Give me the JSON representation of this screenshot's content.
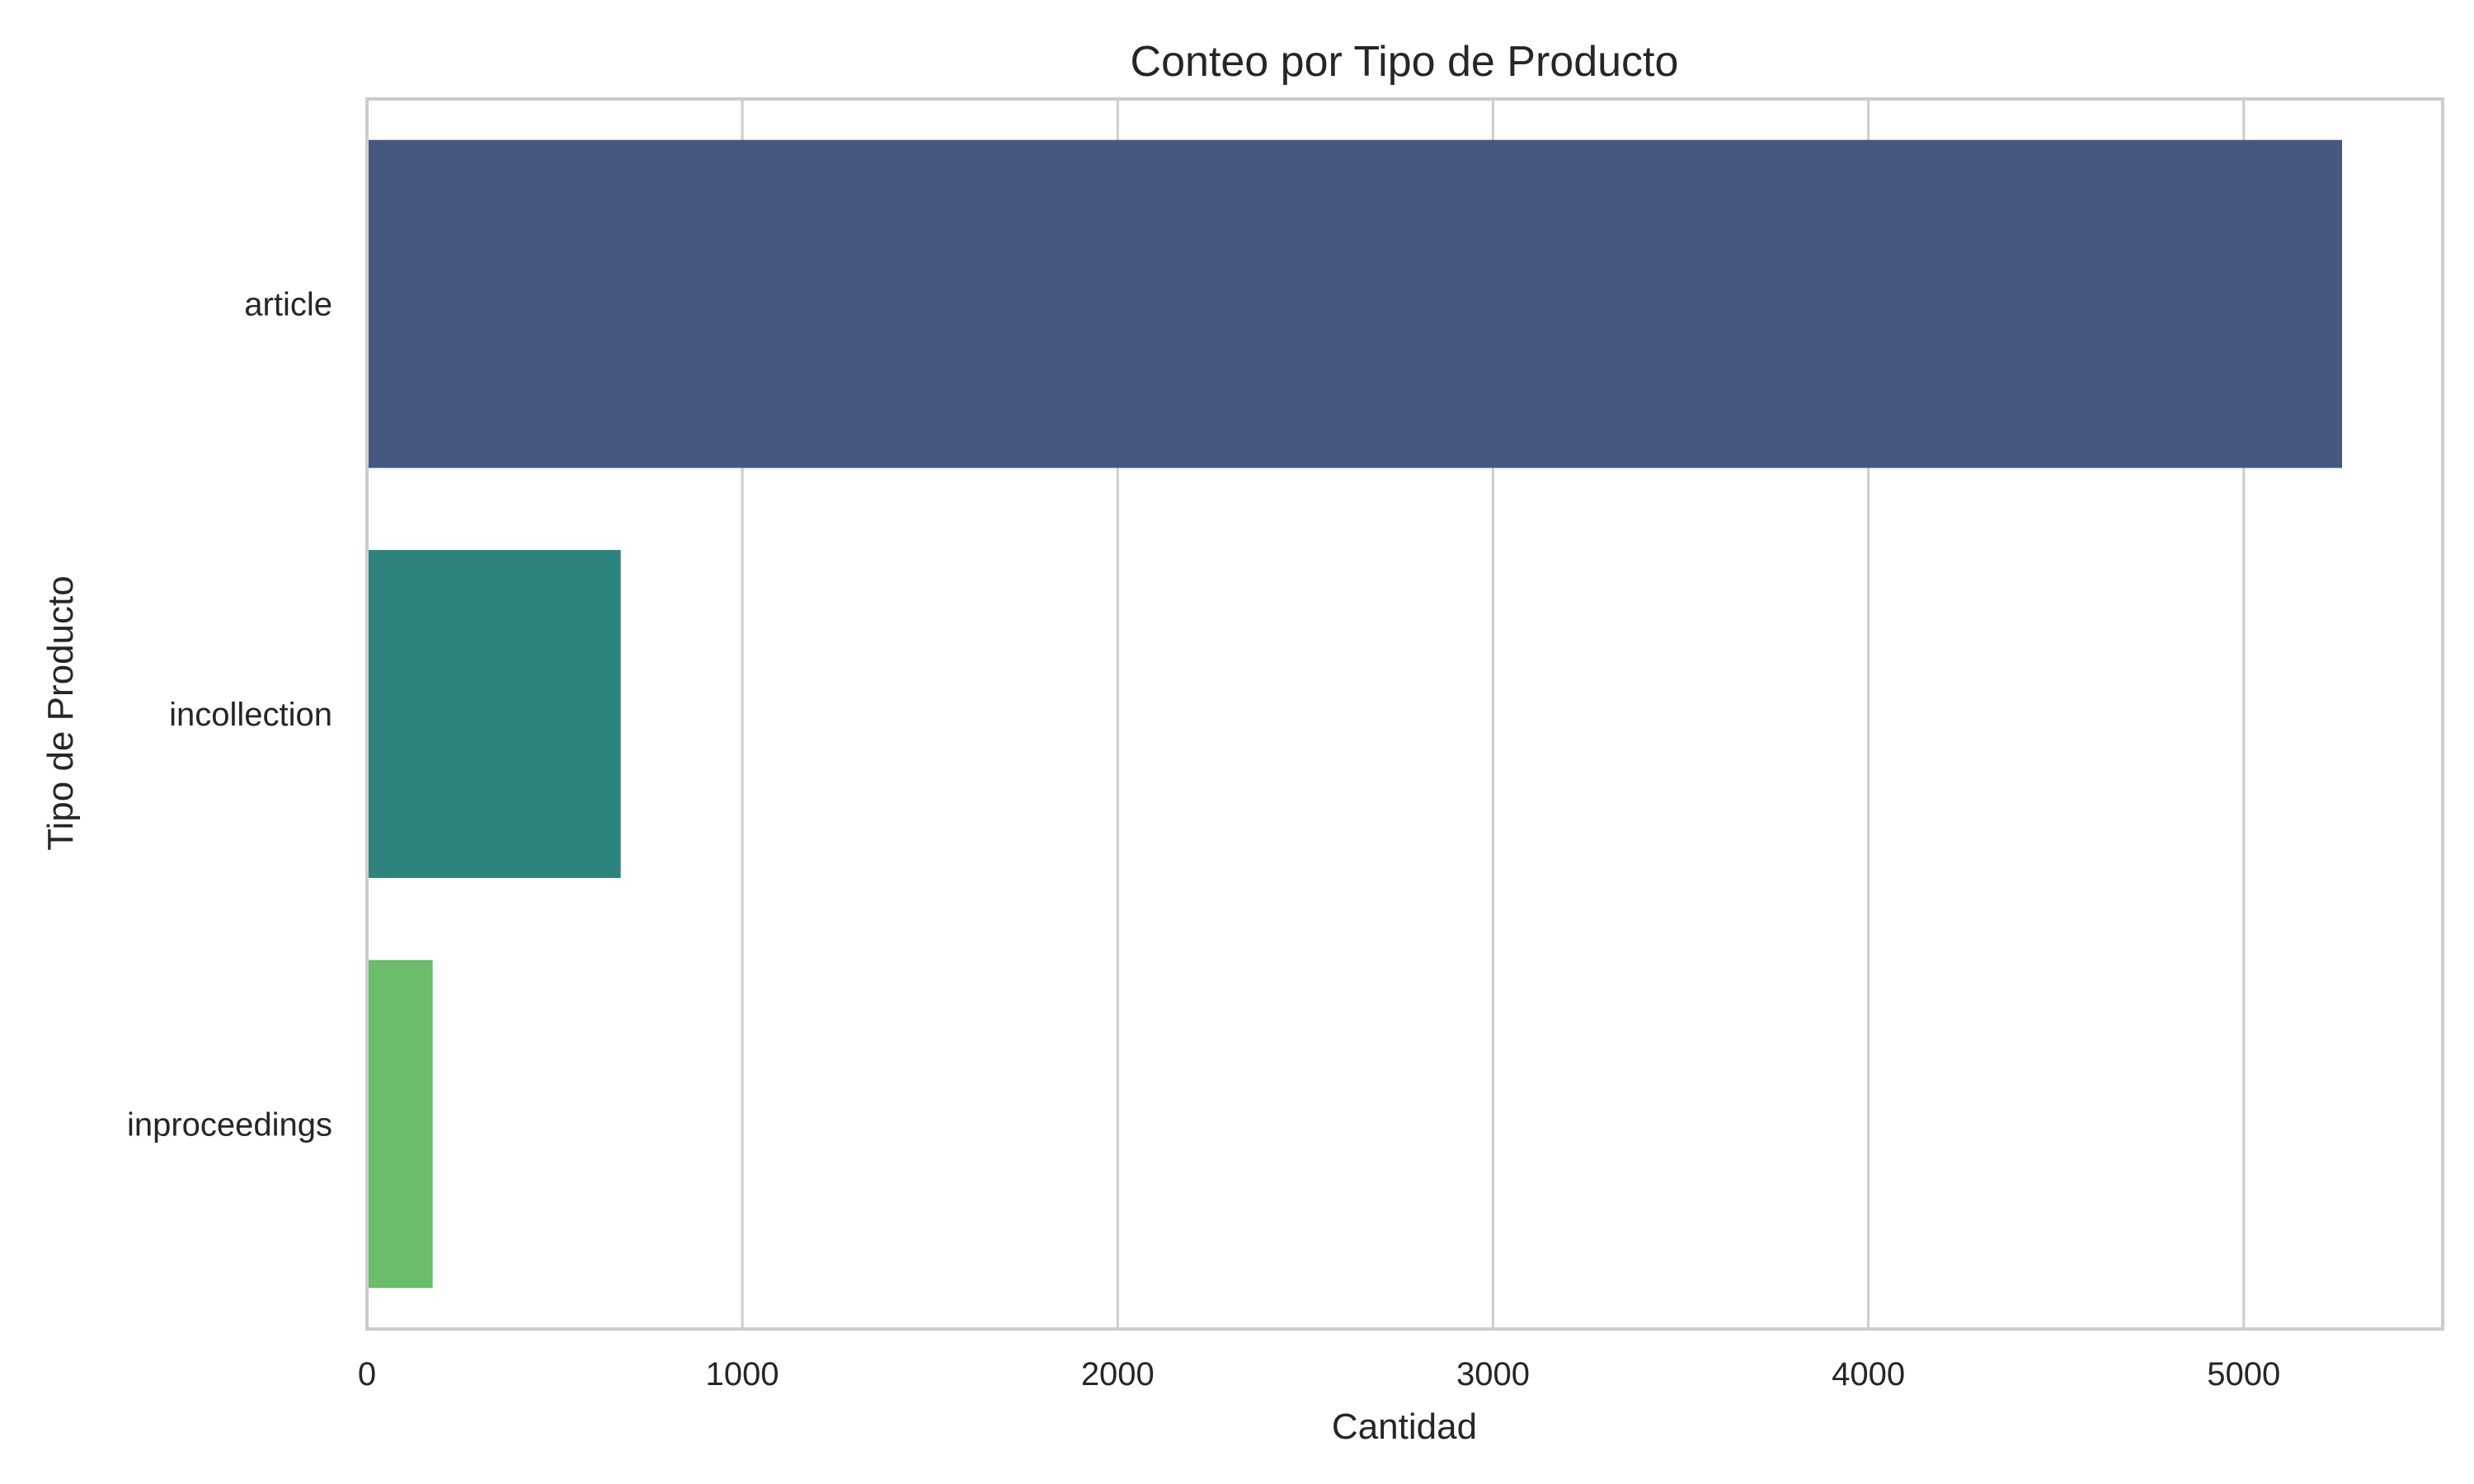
{
  "chart_data": {
    "type": "bar",
    "orientation": "horizontal",
    "title": "Conteo por Tipo de Producto",
    "xlabel": "Cantidad",
    "ylabel": "Tipo de Producto",
    "categories": [
      "article",
      "incollection",
      "inproceedings"
    ],
    "values": [
      5262,
      676,
      175
    ],
    "colors": [
      "#46587f",
      "#2e837c",
      "#6bbc6b"
    ],
    "xlim": [
      0,
      5530
    ],
    "xticks": [
      0,
      1000,
      2000,
      3000,
      4000,
      5000
    ],
    "grid": true,
    "legend": "none"
  }
}
